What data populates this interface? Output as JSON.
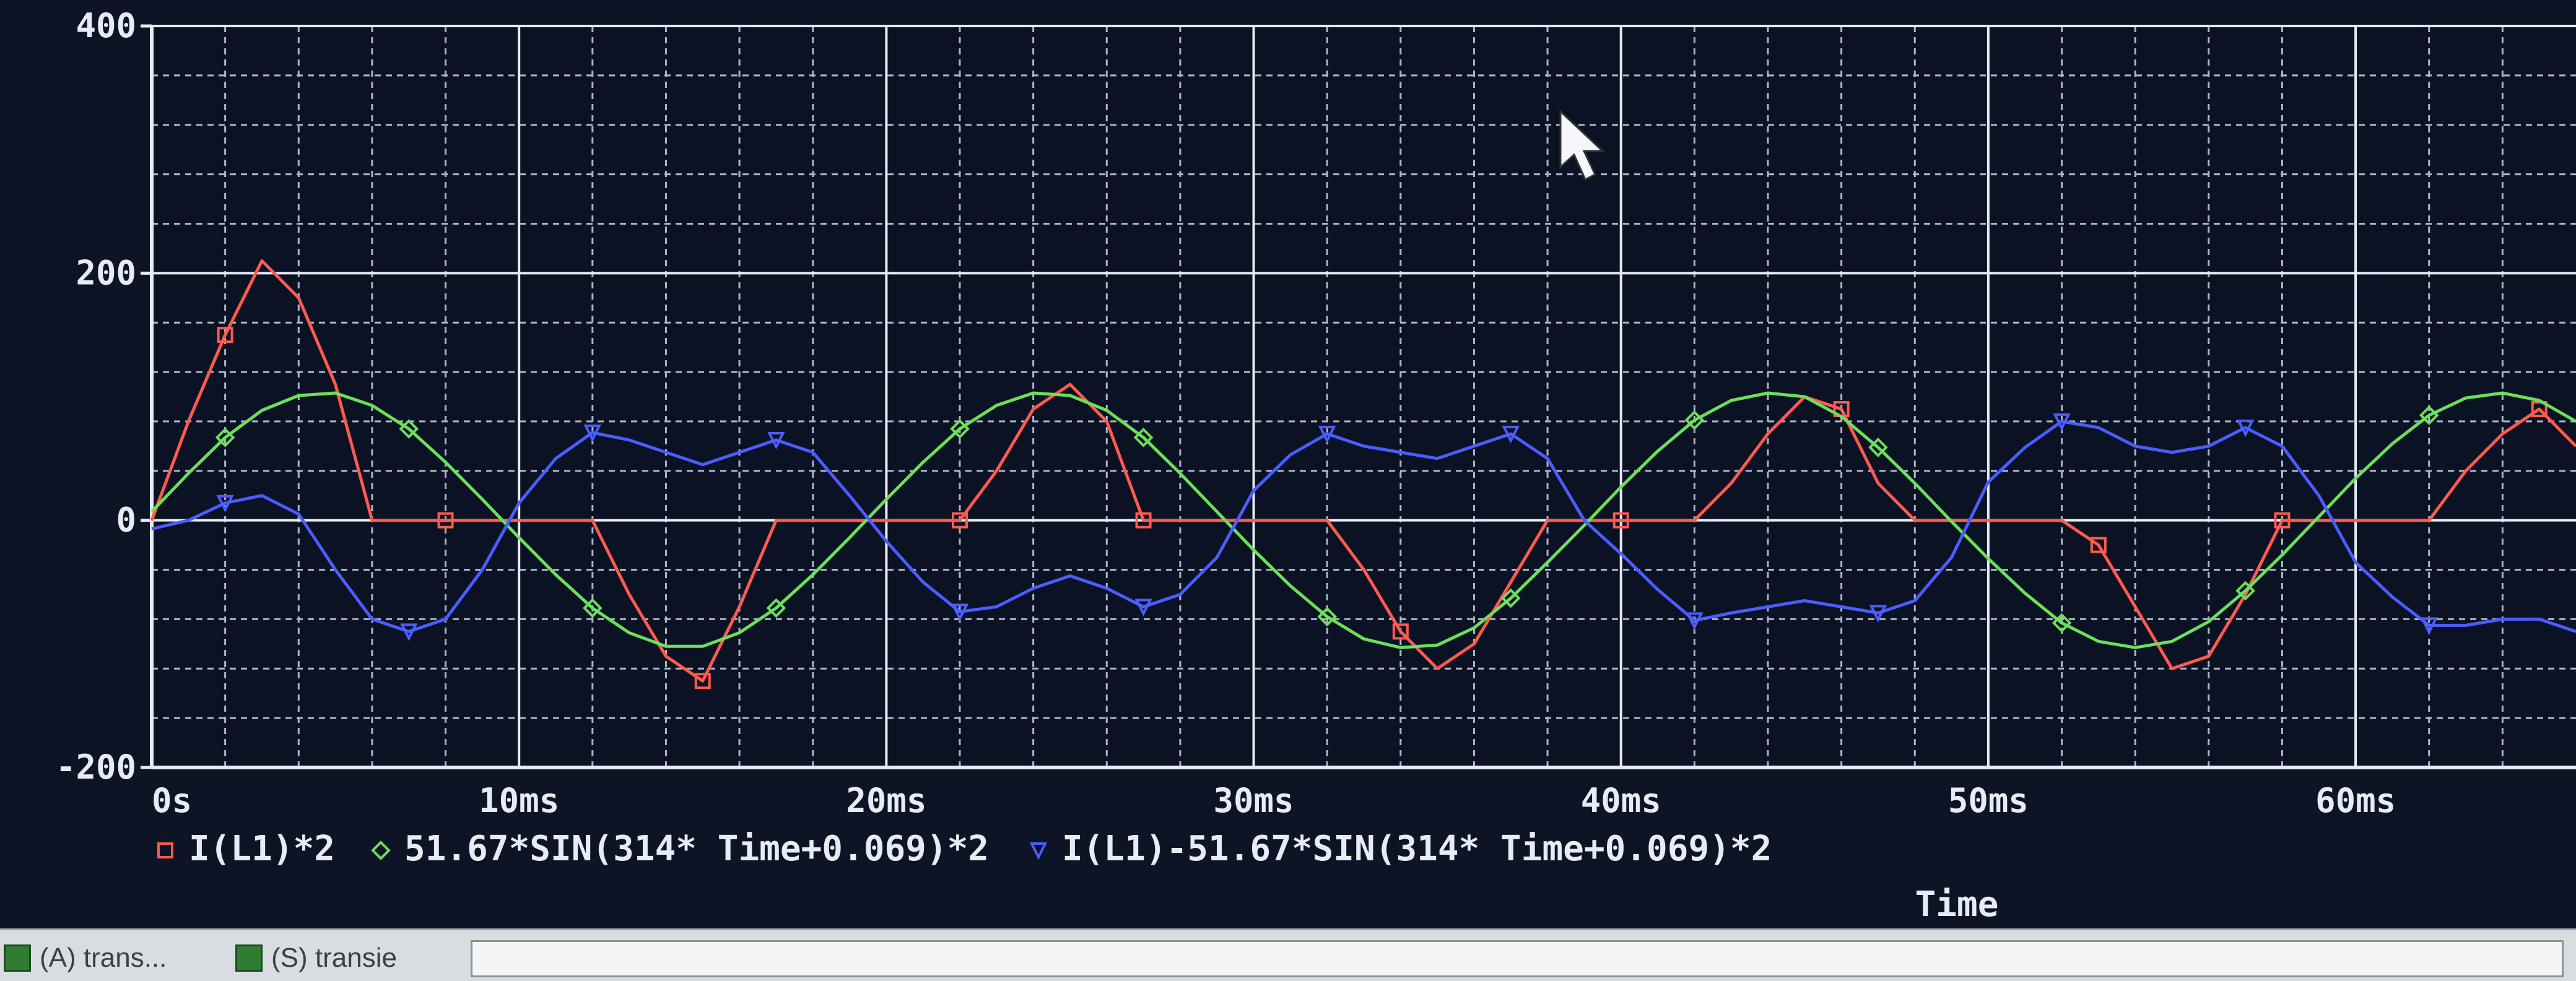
{
  "chart_data": {
    "type": "line",
    "title": "",
    "xlabel": "Time",
    "ylabel": "",
    "xlim": [
      0,
      66
    ],
    "ylim": [
      -200,
      400
    ],
    "x_unit": "ms",
    "grid": true,
    "legend_position": "bottom",
    "y_ticks": [
      {
        "value": 400,
        "label": "400"
      },
      {
        "value": 200,
        "label": "200"
      },
      {
        "value": 0,
        "label": "0"
      },
      {
        "value": -200,
        "label": "-200"
      }
    ],
    "x_ticks": [
      {
        "value": 0,
        "label": "0s"
      },
      {
        "value": 10,
        "label": "10ms"
      },
      {
        "value": 20,
        "label": "20ms"
      },
      {
        "value": 30,
        "label": "30ms"
      },
      {
        "value": 40,
        "label": "40ms"
      },
      {
        "value": 50,
        "label": "50ms"
      },
      {
        "value": 60,
        "label": "60ms"
      }
    ],
    "series": [
      {
        "name": "I(L1)*2",
        "color": "#ff5a4e",
        "marker": "square",
        "x": [
          0,
          1,
          2,
          3,
          4,
          5,
          6,
          8,
          10,
          12,
          13,
          14,
          15,
          16,
          17,
          18,
          20,
          22,
          23,
          24,
          25,
          26,
          27,
          28,
          30,
          32,
          33,
          34,
          35,
          36,
          37,
          38,
          40,
          42,
          43,
          44,
          45,
          46,
          47,
          48,
          50,
          52,
          53,
          54,
          55,
          56,
          57,
          58,
          60,
          62,
          63,
          64,
          65,
          66
        ],
        "y": [
          0,
          80,
          150,
          210,
          180,
          110,
          0,
          0,
          0,
          0,
          -60,
          -110,
          -130,
          -70,
          0,
          0,
          0,
          0,
          40,
          90,
          110,
          80,
          0,
          0,
          0,
          0,
          -40,
          -90,
          -120,
          -100,
          -50,
          0,
          0,
          0,
          30,
          70,
          100,
          90,
          30,
          0,
          0,
          0,
          -20,
          -70,
          -120,
          -110,
          -60,
          0,
          0,
          0,
          40,
          70,
          90,
          60
        ]
      },
      {
        "name": "51.67*SIN(314* Time+0.069)*2",
        "color": "#6be05a",
        "marker": "diamond",
        "x": [
          0,
          1,
          2,
          3,
          4,
          5,
          6,
          7,
          8,
          9,
          10,
          11,
          12,
          13,
          14,
          15,
          16,
          17,
          18,
          19,
          20,
          21,
          22,
          23,
          24,
          25,
          26,
          27,
          28,
          29,
          30,
          31,
          32,
          33,
          34,
          35,
          36,
          37,
          38,
          39,
          40,
          41,
          42,
          43,
          44,
          45,
          46,
          47,
          48,
          49,
          50,
          51,
          52,
          53,
          54,
          55,
          56,
          57,
          58,
          59,
          60,
          61,
          62,
          63,
          64,
          65,
          66
        ],
        "y": [
          7,
          38,
          67,
          89,
          101,
          103,
          93,
          74,
          47,
          17,
          -14,
          -44,
          -71,
          -91,
          -102,
          -102,
          -91,
          -71,
          -44,
          -14,
          17,
          47,
          74,
          93,
          103,
          101,
          89,
          67,
          38,
          7,
          -24,
          -53,
          -78,
          -96,
          -103,
          -101,
          -87,
          -63,
          -34,
          -4,
          27,
          56,
          81,
          97,
          103,
          100,
          84,
          59,
          30,
          -1,
          -31,
          -59,
          -83,
          -98,
          -103,
          -98,
          -82,
          -57,
          -28,
          3,
          34,
          62,
          85,
          99,
          103,
          97,
          80
        ]
      },
      {
        "name": "I(L1)-51.67*SIN(314* Time+0.069)*2",
        "color": "#4a5dff",
        "marker": "triangle-down",
        "x": [
          0,
          1,
          2,
          3,
          4,
          5,
          6,
          7,
          8,
          9,
          10,
          11,
          12,
          13,
          14,
          15,
          16,
          17,
          18,
          19,
          20,
          21,
          22,
          23,
          24,
          25,
          26,
          27,
          28,
          29,
          30,
          31,
          32,
          33,
          34,
          35,
          36,
          37,
          38,
          39,
          40,
          41,
          42,
          43,
          44,
          45,
          46,
          47,
          48,
          49,
          50,
          51,
          52,
          53,
          54,
          55,
          56,
          57,
          58,
          59,
          60,
          61,
          62,
          63,
          64,
          65,
          66
        ],
        "y": [
          -7,
          0,
          14,
          20,
          5,
          -40,
          -80,
          -90,
          -80,
          -40,
          14,
          50,
          71,
          65,
          55,
          45,
          55,
          65,
          55,
          20,
          -17,
          -50,
          -74,
          -70,
          -55,
          -45,
          -55,
          -70,
          -60,
          -30,
          24,
          53,
          70,
          60,
          55,
          50,
          60,
          70,
          50,
          0,
          -27,
          -56,
          -81,
          -75,
          -70,
          -65,
          -70,
          -75,
          -65,
          -30,
          31,
          59,
          80,
          75,
          60,
          55,
          60,
          75,
          60,
          20,
          -34,
          -62,
          -85,
          -85,
          -80,
          -80,
          -90
        ]
      }
    ]
  },
  "taskbar": {
    "tabs": [
      {
        "label": "(A) trans..."
      },
      {
        "label": "(S) transie"
      }
    ]
  }
}
